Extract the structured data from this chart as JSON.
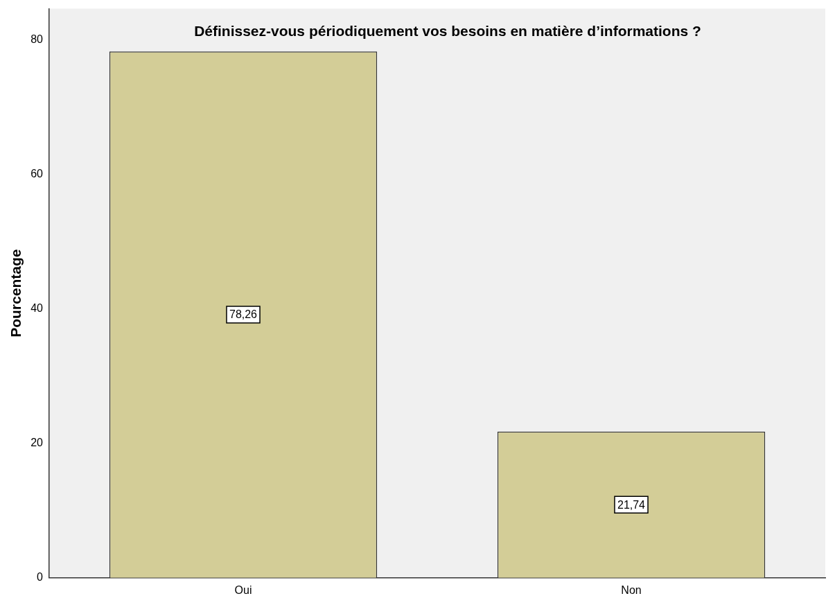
{
  "chart_data": {
    "type": "bar",
    "title": "Définissez-vous périodiquement vos besoins en matière d’informations ?",
    "ylabel": "Pourcentage",
    "categories": [
      "Oui",
      "Non"
    ],
    "values": [
      78.26,
      21.74
    ],
    "value_labels": [
      "78,26",
      "21,74"
    ],
    "color": "#d3cd97",
    "ylim": [
      0,
      84.6
    ],
    "yticks": [
      0,
      20,
      40,
      60,
      80
    ],
    "grid": false,
    "legend": false
  }
}
